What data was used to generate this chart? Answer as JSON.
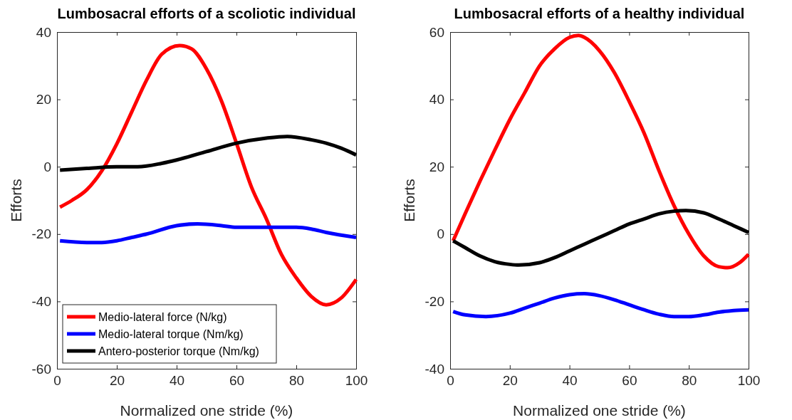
{
  "chart_data": [
    {
      "type": "line",
      "title": "Lumbosacral efforts of a scoliotic individual",
      "xlabel": "Normalized one stride (%)",
      "ylabel": "Efforts",
      "xlim": [
        0,
        100
      ],
      "xticks": [
        0,
        20,
        40,
        60,
        80,
        100
      ],
      "ylim": [
        -60,
        40
      ],
      "yticks": [
        -60,
        -40,
        -20,
        0,
        20,
        40
      ],
      "grid": false,
      "legend": "bottom left",
      "line_style": "solid",
      "series": [
        {
          "name": "Medio-lateral force (N/kg)",
          "color": "#ff0000",
          "x": [
            1,
            5,
            10,
            15,
            20,
            25,
            30,
            35,
            41,
            45,
            50,
            55,
            60,
            65,
            70,
            75,
            80,
            85,
            90,
            95,
            100
          ],
          "values": [
            -12,
            -10,
            -6.8,
            -1.2,
            6.8,
            16.3,
            25.8,
            33.4,
            36,
            35,
            29,
            19.5,
            7,
            -6,
            -15.5,
            -26,
            -33,
            -38.5,
            -41,
            -39,
            -33.5
          ]
        },
        {
          "name": "Medio-lateral torque (Nm/kg)",
          "color": "#0000ff",
          "x": [
            1,
            10,
            15,
            20,
            25,
            30,
            40,
            47,
            55,
            60,
            70,
            80,
            85,
            90,
            100
          ],
          "values": [
            -22,
            -22.5,
            -22.5,
            -22,
            -21,
            -20,
            -17.5,
            -17,
            -17.5,
            -18,
            -18,
            -18,
            -18.5,
            -19.5,
            -21
          ]
        },
        {
          "name": "Antero-posterior torque (Nm/kg)",
          "color": "#000000",
          "x": [
            1,
            10,
            20,
            27,
            35,
            40,
            50,
            60,
            70,
            77,
            85,
            90,
            95,
            100
          ],
          "values": [
            -1,
            -0.5,
            0,
            0,
            1,
            2,
            4.5,
            7,
            8.5,
            9,
            8,
            7,
            5.5,
            3.5
          ]
        }
      ]
    },
    {
      "type": "line",
      "title": "Lumbosacral efforts of a healthy individual",
      "xlabel": "Normalized one stride (%)",
      "ylabel": "Efforts",
      "xlim": [
        0,
        100
      ],
      "xticks": [
        0,
        20,
        40,
        60,
        80,
        100
      ],
      "ylim": [
        -40,
        60
      ],
      "yticks": [
        -40,
        -20,
        0,
        20,
        40,
        60
      ],
      "grid": false,
      "line_style": "solid",
      "series": [
        {
          "color": "#ff0000",
          "x": [
            1,
            5,
            10,
            15,
            20,
            25,
            30,
            35,
            40,
            43,
            45,
            50,
            55,
            60,
            65,
            70,
            75,
            80,
            85,
            90,
            93,
            97,
            100
          ],
          "values": [
            -2,
            6,
            15.7,
            25,
            34,
            42,
            50,
            55,
            58.4,
            59,
            58.4,
            54.5,
            48,
            39.4,
            30,
            18.8,
            8.5,
            0,
            -6.5,
            -9.7,
            -10,
            -8.5,
            -6
          ]
        },
        {
          "color": "#0000ff",
          "x": [
            1,
            5,
            12,
            20,
            25,
            30,
            35,
            40,
            45,
            50,
            55,
            60,
            65,
            70,
            75,
            80,
            85,
            90,
            95,
            100
          ],
          "values": [
            -23,
            -24,
            -24.5,
            -23.5,
            -22,
            -20.5,
            -19,
            -18,
            -17.7,
            -18.3,
            -19.5,
            -21,
            -22.5,
            -23.8,
            -24.5,
            -24.5,
            -24,
            -23.2,
            -22.7,
            -22.5
          ]
        },
        {
          "color": "#000000",
          "x": [
            1,
            5,
            10,
            15,
            20,
            23,
            30,
            35,
            40,
            45,
            50,
            55,
            60,
            65,
            70,
            75,
            79,
            85,
            90,
            95,
            100
          ],
          "values": [
            -2,
            -4,
            -6.5,
            -8.2,
            -9,
            -9.2,
            -8.5,
            -7,
            -5,
            -3,
            -1,
            1,
            3,
            4.5,
            6,
            6.8,
            7,
            6.3,
            4.5,
            2.5,
            0.5
          ]
        }
      ]
    }
  ]
}
